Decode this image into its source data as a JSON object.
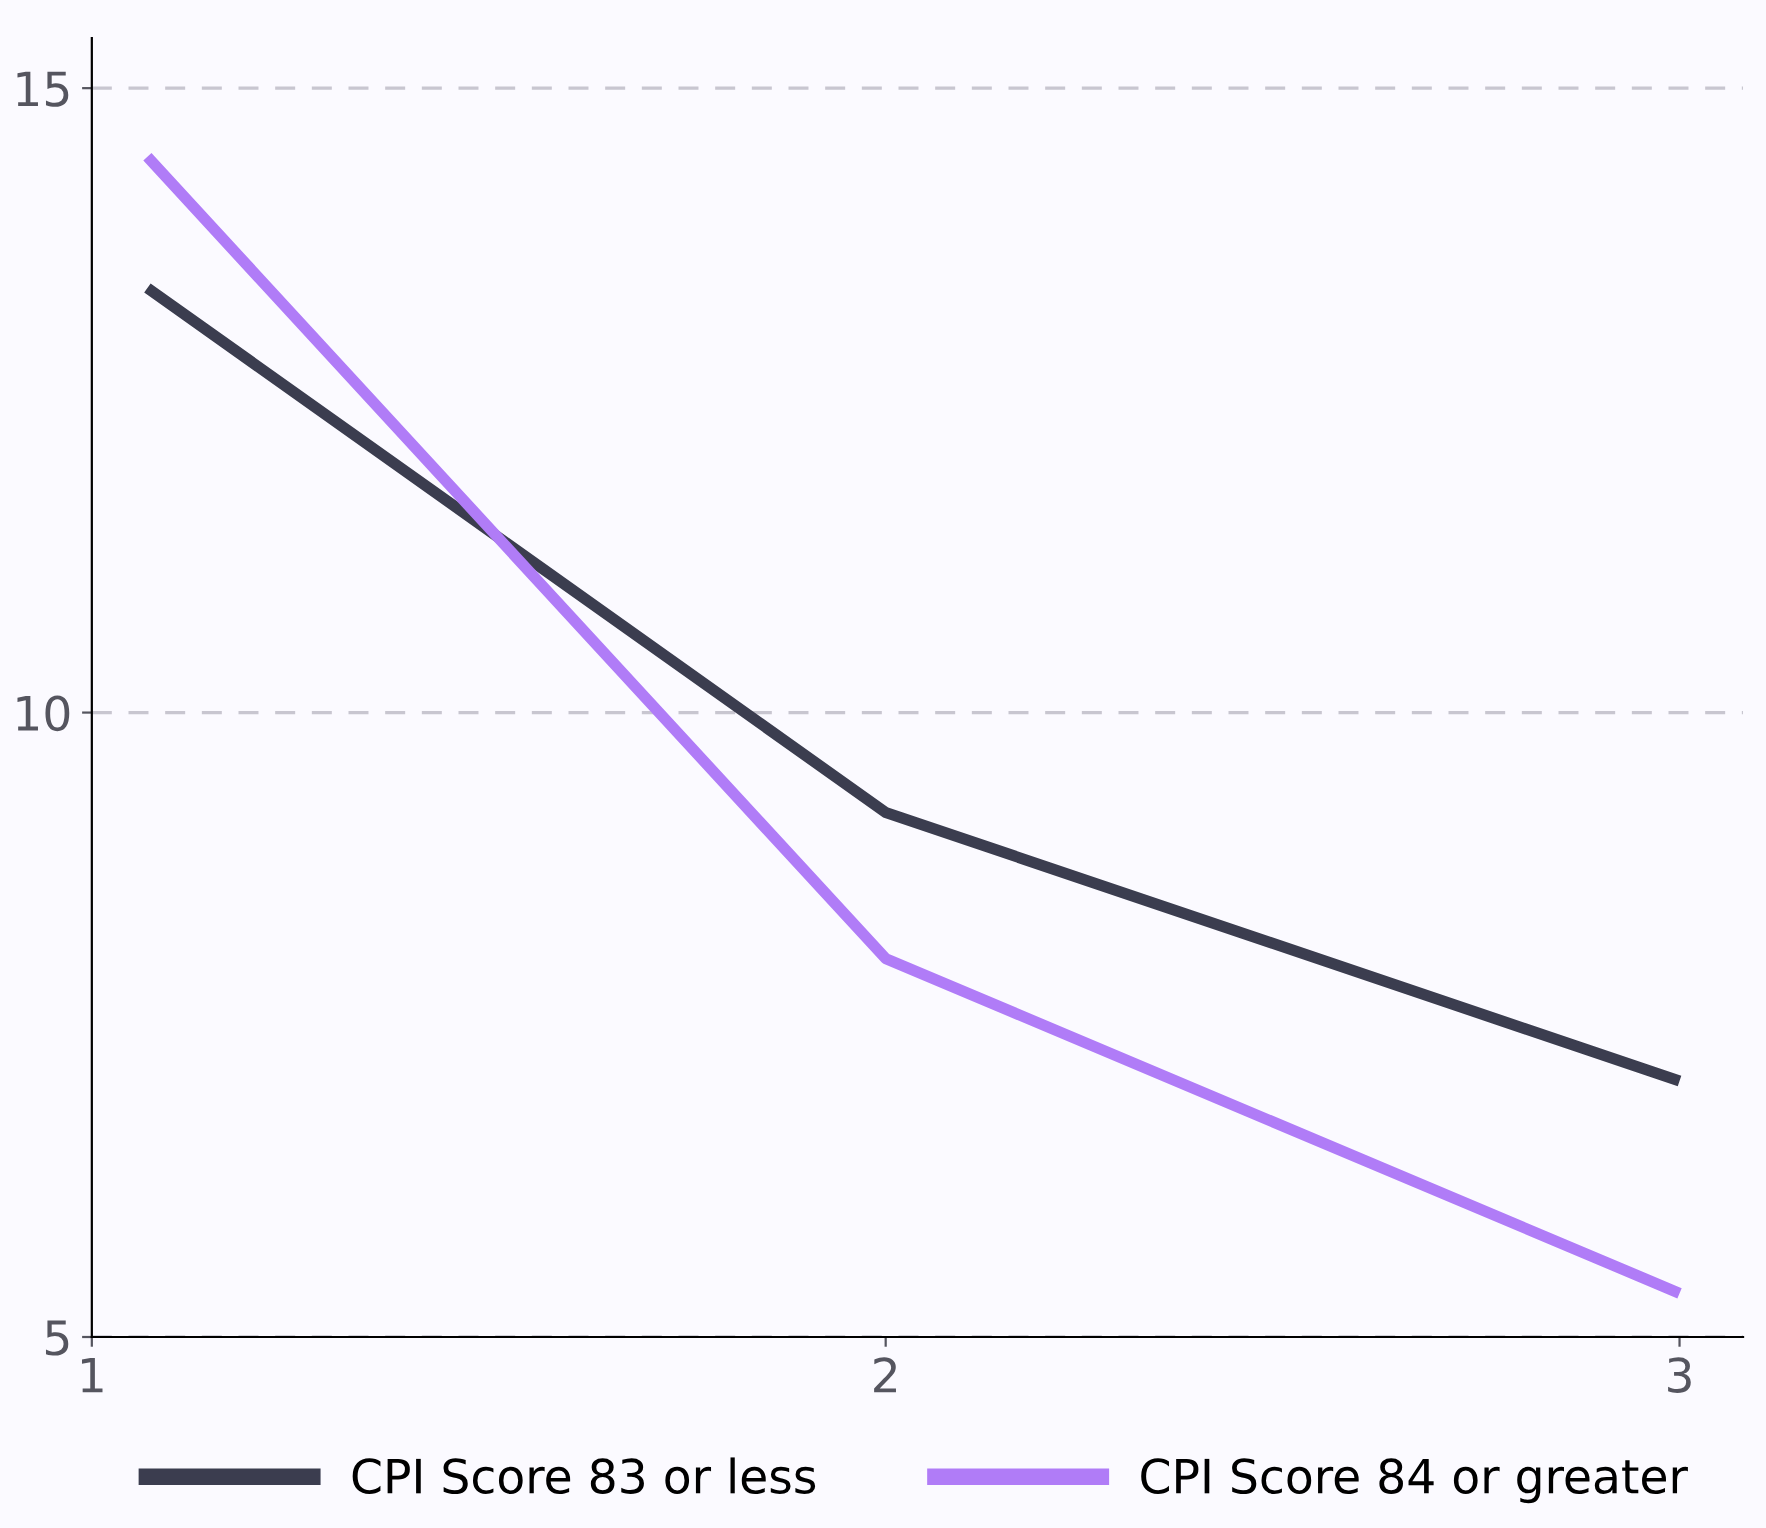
{
  "chart_data": {
    "type": "line",
    "x": [
      1.07,
      2,
      3
    ],
    "series": [
      {
        "name": "CPI Score 83 or less",
        "color": "#3b3d4f",
        "values": [
          13.4,
          9.2,
          7.05
        ]
      },
      {
        "name": "CPI Score 84 or greater",
        "color": "#b07cf7",
        "values": [
          14.45,
          8.03,
          5.35
        ]
      }
    ],
    "xlim": [
      1,
      3.08
    ],
    "xticks": [
      1,
      2,
      3
    ],
    "ylim": [
      5,
      15.4
    ],
    "yticks": [
      5,
      10,
      15
    ],
    "grid": "y",
    "legend": "bottom",
    "marker": "none",
    "line_style": "solid"
  }
}
